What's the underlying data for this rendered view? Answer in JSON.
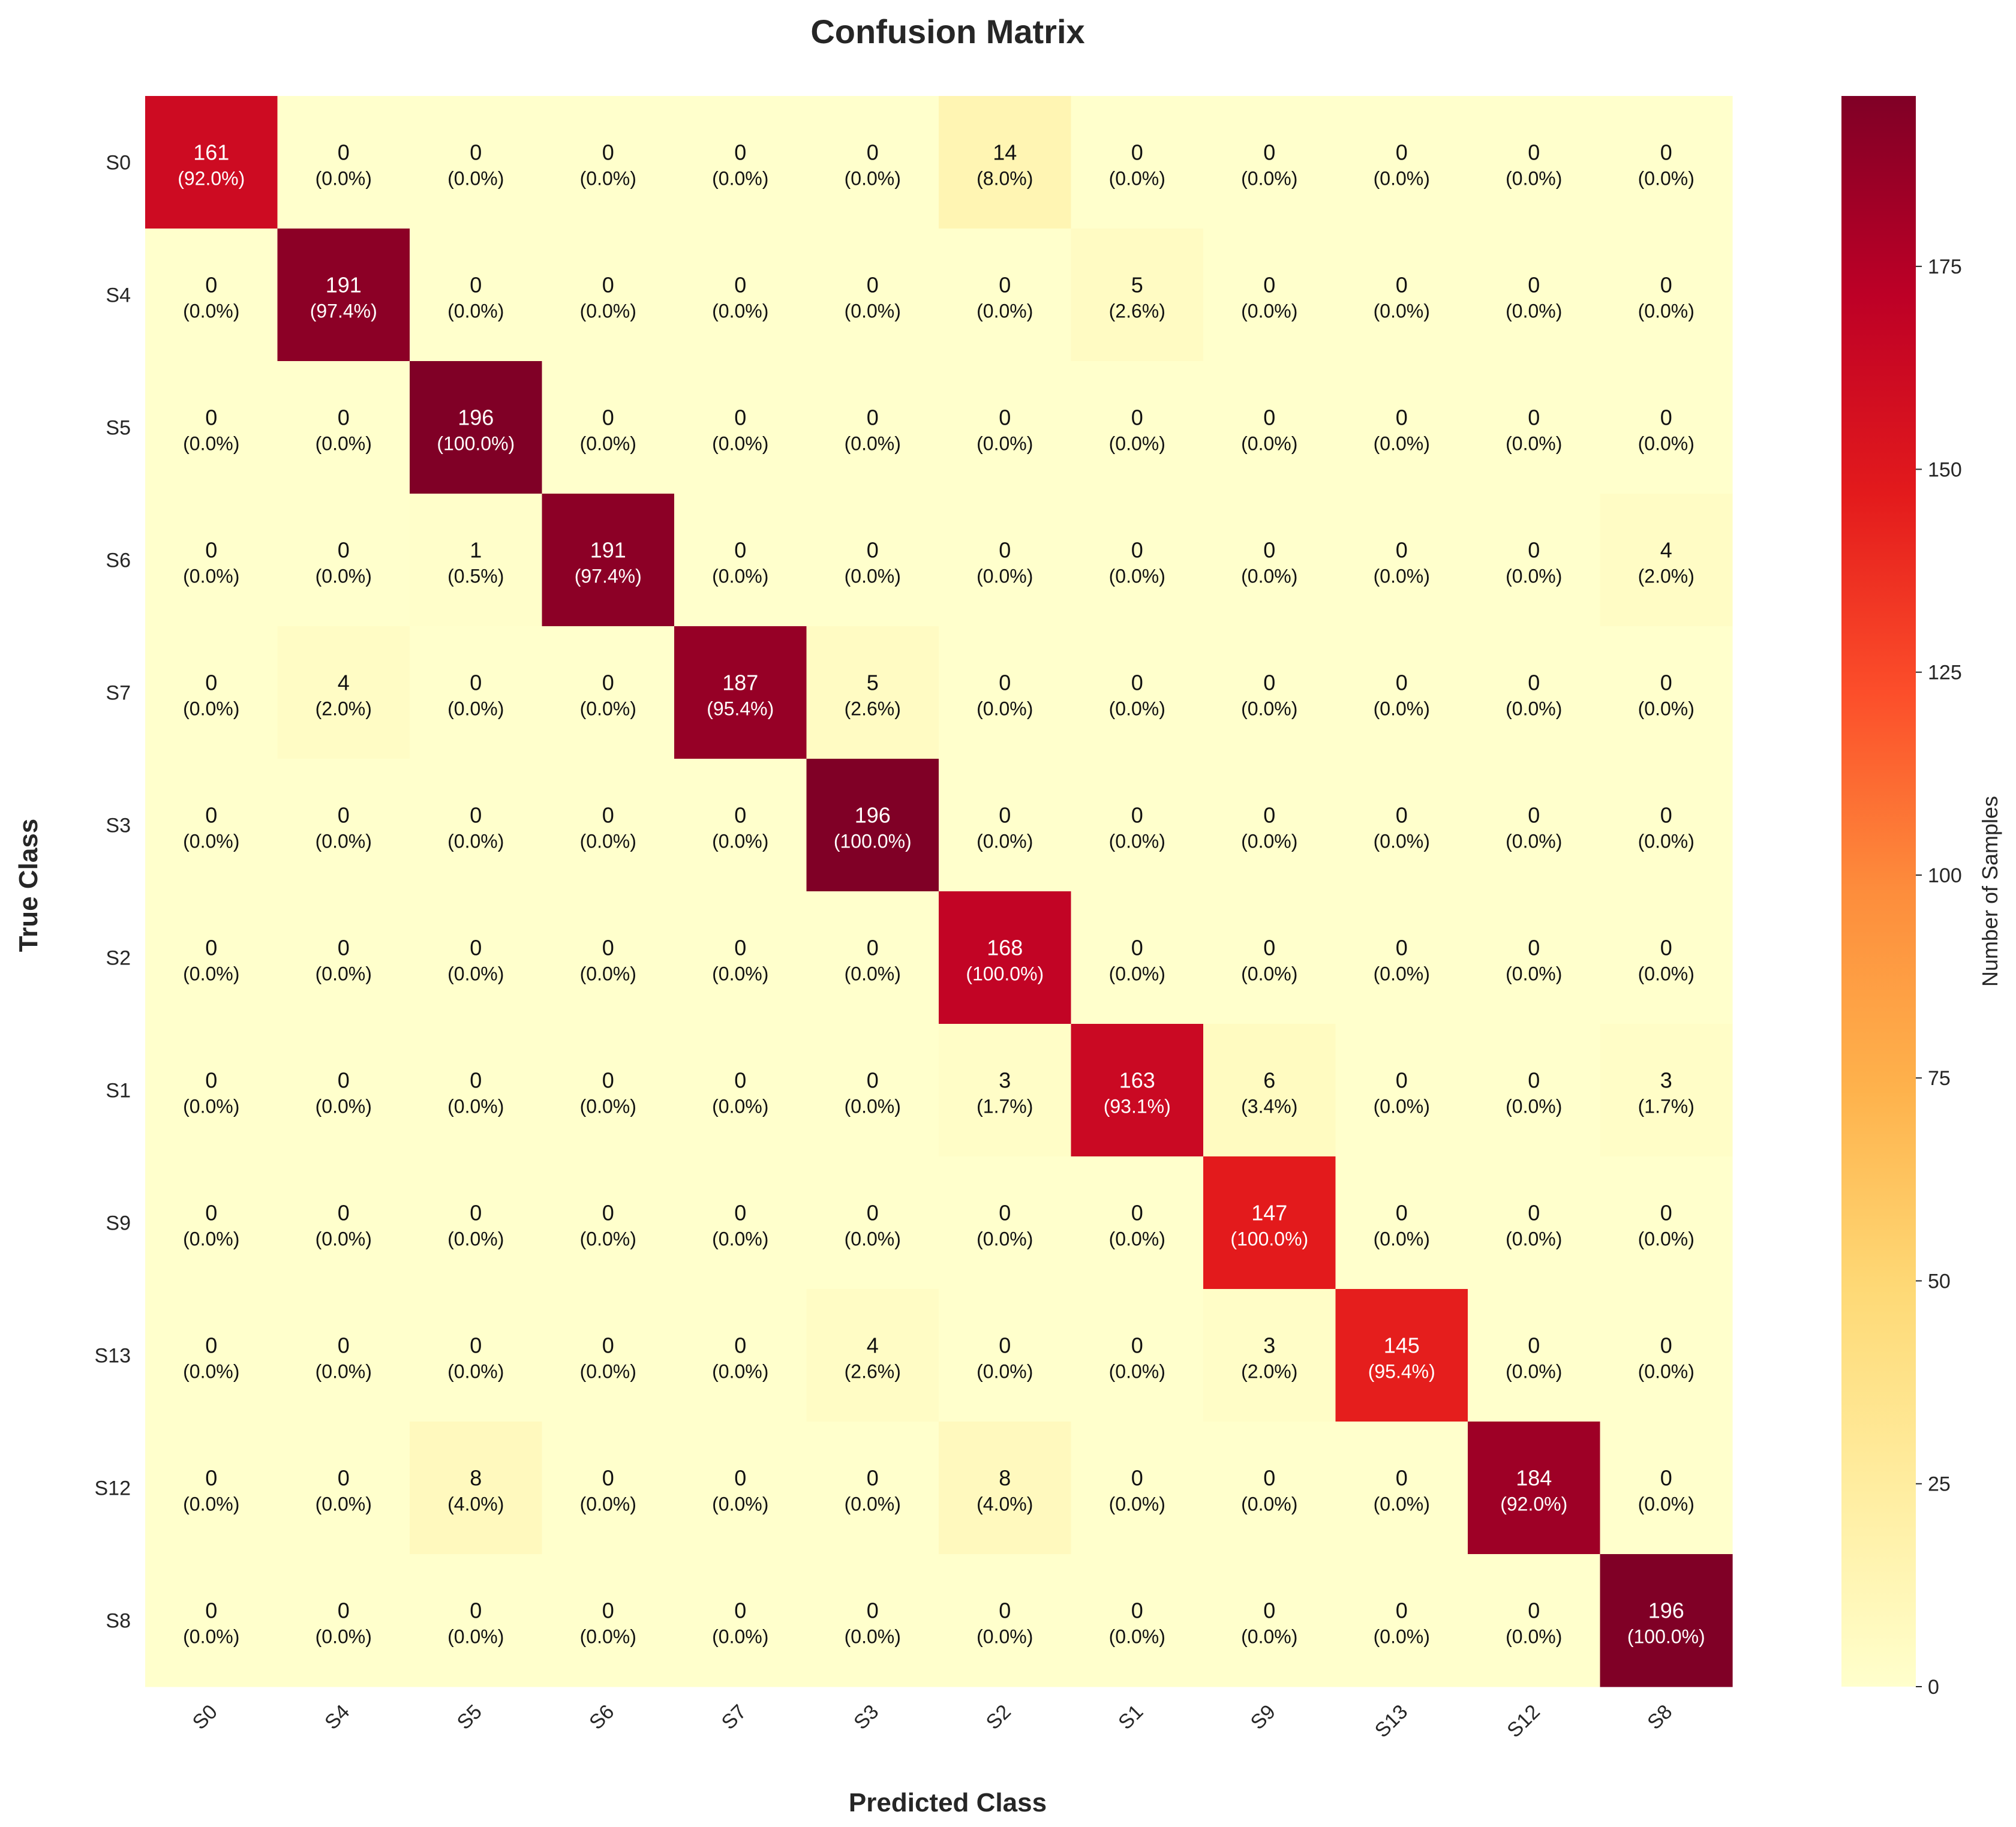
{
  "chart_data": {
    "type": "heatmap",
    "title": "Confusion Matrix",
    "xlabel": "Predicted Class",
    "ylabel": "True Class",
    "x_categories": [
      "S0",
      "S4",
      "S5",
      "S6",
      "S7",
      "S3",
      "S2",
      "S1",
      "S9",
      "S13",
      "S12",
      "S8"
    ],
    "y_categories": [
      "S0",
      "S4",
      "S5",
      "S6",
      "S7",
      "S3",
      "S2",
      "S1",
      "S9",
      "S13",
      "S12",
      "S8"
    ],
    "values": [
      [
        161,
        0,
        0,
        0,
        0,
        0,
        14,
        0,
        0,
        0,
        0,
        0
      ],
      [
        0,
        191,
        0,
        0,
        0,
        0,
        0,
        5,
        0,
        0,
        0,
        0
      ],
      [
        0,
        0,
        196,
        0,
        0,
        0,
        0,
        0,
        0,
        0,
        0,
        0
      ],
      [
        0,
        0,
        1,
        191,
        0,
        0,
        0,
        0,
        0,
        0,
        0,
        4
      ],
      [
        0,
        4,
        0,
        0,
        187,
        5,
        0,
        0,
        0,
        0,
        0,
        0
      ],
      [
        0,
        0,
        0,
        0,
        0,
        196,
        0,
        0,
        0,
        0,
        0,
        0
      ],
      [
        0,
        0,
        0,
        0,
        0,
        0,
        168,
        0,
        0,
        0,
        0,
        0
      ],
      [
        0,
        0,
        0,
        0,
        0,
        0,
        3,
        163,
        6,
        0,
        0,
        3
      ],
      [
        0,
        0,
        0,
        0,
        0,
        0,
        0,
        0,
        147,
        0,
        0,
        0
      ],
      [
        0,
        0,
        0,
        0,
        0,
        4,
        0,
        0,
        3,
        145,
        0,
        0
      ],
      [
        0,
        0,
        8,
        0,
        0,
        0,
        8,
        0,
        0,
        0,
        184,
        0
      ],
      [
        0,
        0,
        0,
        0,
        0,
        0,
        0,
        0,
        0,
        0,
        0,
        196
      ]
    ],
    "percent_labels": [
      [
        "(92.0%)",
        "(0.0%)",
        "(0.0%)",
        "(0.0%)",
        "(0.0%)",
        "(0.0%)",
        "(8.0%)",
        "(0.0%)",
        "(0.0%)",
        "(0.0%)",
        "(0.0%)",
        "(0.0%)"
      ],
      [
        "(0.0%)",
        "(97.4%)",
        "(0.0%)",
        "(0.0%)",
        "(0.0%)",
        "(0.0%)",
        "(0.0%)",
        "(2.6%)",
        "(0.0%)",
        "(0.0%)",
        "(0.0%)",
        "(0.0%)"
      ],
      [
        "(0.0%)",
        "(0.0%)",
        "(100.0%)",
        "(0.0%)",
        "(0.0%)",
        "(0.0%)",
        "(0.0%)",
        "(0.0%)",
        "(0.0%)",
        "(0.0%)",
        "(0.0%)",
        "(0.0%)"
      ],
      [
        "(0.0%)",
        "(0.0%)",
        "(0.5%)",
        "(97.4%)",
        "(0.0%)",
        "(0.0%)",
        "(0.0%)",
        "(0.0%)",
        "(0.0%)",
        "(0.0%)",
        "(0.0%)",
        "(2.0%)"
      ],
      [
        "(0.0%)",
        "(2.0%)",
        "(0.0%)",
        "(0.0%)",
        "(95.4%)",
        "(2.6%)",
        "(0.0%)",
        "(0.0%)",
        "(0.0%)",
        "(0.0%)",
        "(0.0%)",
        "(0.0%)"
      ],
      [
        "(0.0%)",
        "(0.0%)",
        "(0.0%)",
        "(0.0%)",
        "(0.0%)",
        "(100.0%)",
        "(0.0%)",
        "(0.0%)",
        "(0.0%)",
        "(0.0%)",
        "(0.0%)",
        "(0.0%)"
      ],
      [
        "(0.0%)",
        "(0.0%)",
        "(0.0%)",
        "(0.0%)",
        "(0.0%)",
        "(0.0%)",
        "(100.0%)",
        "(0.0%)",
        "(0.0%)",
        "(0.0%)",
        "(0.0%)",
        "(0.0%)"
      ],
      [
        "(0.0%)",
        "(0.0%)",
        "(0.0%)",
        "(0.0%)",
        "(0.0%)",
        "(0.0%)",
        "(1.7%)",
        "(93.1%)",
        "(3.4%)",
        "(0.0%)",
        "(0.0%)",
        "(1.7%)"
      ],
      [
        "(0.0%)",
        "(0.0%)",
        "(0.0%)",
        "(0.0%)",
        "(0.0%)",
        "(0.0%)",
        "(0.0%)",
        "(0.0%)",
        "(100.0%)",
        "(0.0%)",
        "(0.0%)",
        "(0.0%)"
      ],
      [
        "(0.0%)",
        "(0.0%)",
        "(0.0%)",
        "(0.0%)",
        "(0.0%)",
        "(2.6%)",
        "(0.0%)",
        "(0.0%)",
        "(2.0%)",
        "(95.4%)",
        "(0.0%)",
        "(0.0%)"
      ],
      [
        "(0.0%)",
        "(0.0%)",
        "(4.0%)",
        "(0.0%)",
        "(0.0%)",
        "(0.0%)",
        "(4.0%)",
        "(0.0%)",
        "(0.0%)",
        "(0.0%)",
        "(92.0%)",
        "(0.0%)"
      ],
      [
        "(0.0%)",
        "(0.0%)",
        "(0.0%)",
        "(0.0%)",
        "(0.0%)",
        "(0.0%)",
        "(0.0%)",
        "(0.0%)",
        "(0.0%)",
        "(0.0%)",
        "(0.0%)",
        "(100.0%)"
      ]
    ],
    "colorbar": {
      "label": "Number of Samples",
      "range": [
        0,
        196
      ],
      "ticks": [
        0,
        25,
        50,
        75,
        100,
        125,
        150,
        175
      ],
      "colors": [
        "#ffffcc",
        "#ffeda0",
        "#fed976",
        "#feb24c",
        "#fd8d3c",
        "#fc4e2a",
        "#e31a1c",
        "#bd0026",
        "#800026"
      ]
    },
    "legend": "colorbar-right",
    "grid": false
  }
}
